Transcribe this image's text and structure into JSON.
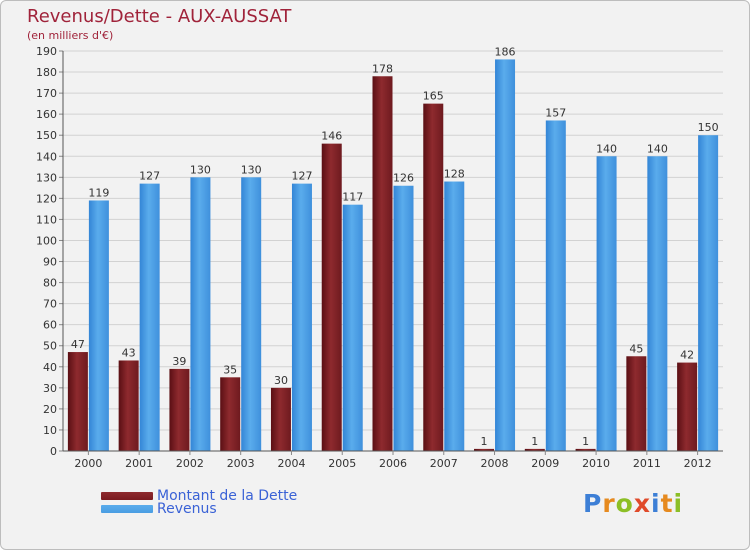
{
  "chart_data": {
    "type": "bar",
    "title": "Revenus/Dette - AUX-AUSSAT",
    "subtitle": "(en milliers d'€)",
    "categories": [
      "2000",
      "2001",
      "2002",
      "2003",
      "2004",
      "2005",
      "2006",
      "2007",
      "2008",
      "2009",
      "2010",
      "2011",
      "2012"
    ],
    "series": [
      {
        "name": "Montant de la Dette",
        "color": "#7a1a1f",
        "values": [
          47,
          43,
          39,
          35,
          30,
          146,
          178,
          165,
          1,
          1,
          1,
          45,
          42
        ]
      },
      {
        "name": "Revenus",
        "color": "#4a9de2",
        "values": [
          119,
          127,
          130,
          130,
          127,
          117,
          126,
          128,
          186,
          157,
          140,
          140,
          150
        ]
      }
    ],
    "ylim": [
      0,
      190
    ],
    "yticks": [
      0,
      10,
      20,
      30,
      40,
      50,
      60,
      70,
      80,
      90,
      100,
      110,
      120,
      130,
      140,
      150,
      160,
      170,
      180,
      190
    ],
    "grid": true,
    "legend_position": "bottom-left"
  },
  "logo": {
    "text": "Proxiti",
    "colors": [
      "#3d7fd6",
      "#e68a1f",
      "#8cbf26",
      "#e04a2a",
      "#3d7fd6",
      "#e68a1f",
      "#8cbf26"
    ]
  }
}
